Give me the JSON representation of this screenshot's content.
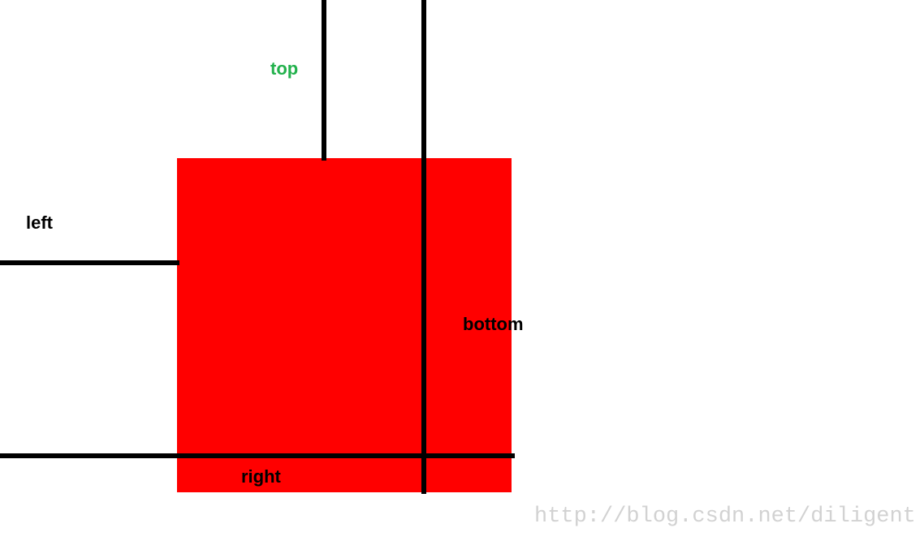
{
  "diagram": {
    "box_color": "#ff0000",
    "line_color": "#000000",
    "labels": {
      "top": {
        "text": "top",
        "color": "#22b14c"
      },
      "left": {
        "text": "left",
        "color": "#000000"
      },
      "bottom": {
        "text": "bottom",
        "color": "#000000"
      },
      "right": {
        "text": "right",
        "color": "#000000"
      }
    }
  },
  "watermark": {
    "text": "http://blog.csdn.net/diligent",
    "color": "#d2d2d2"
  }
}
